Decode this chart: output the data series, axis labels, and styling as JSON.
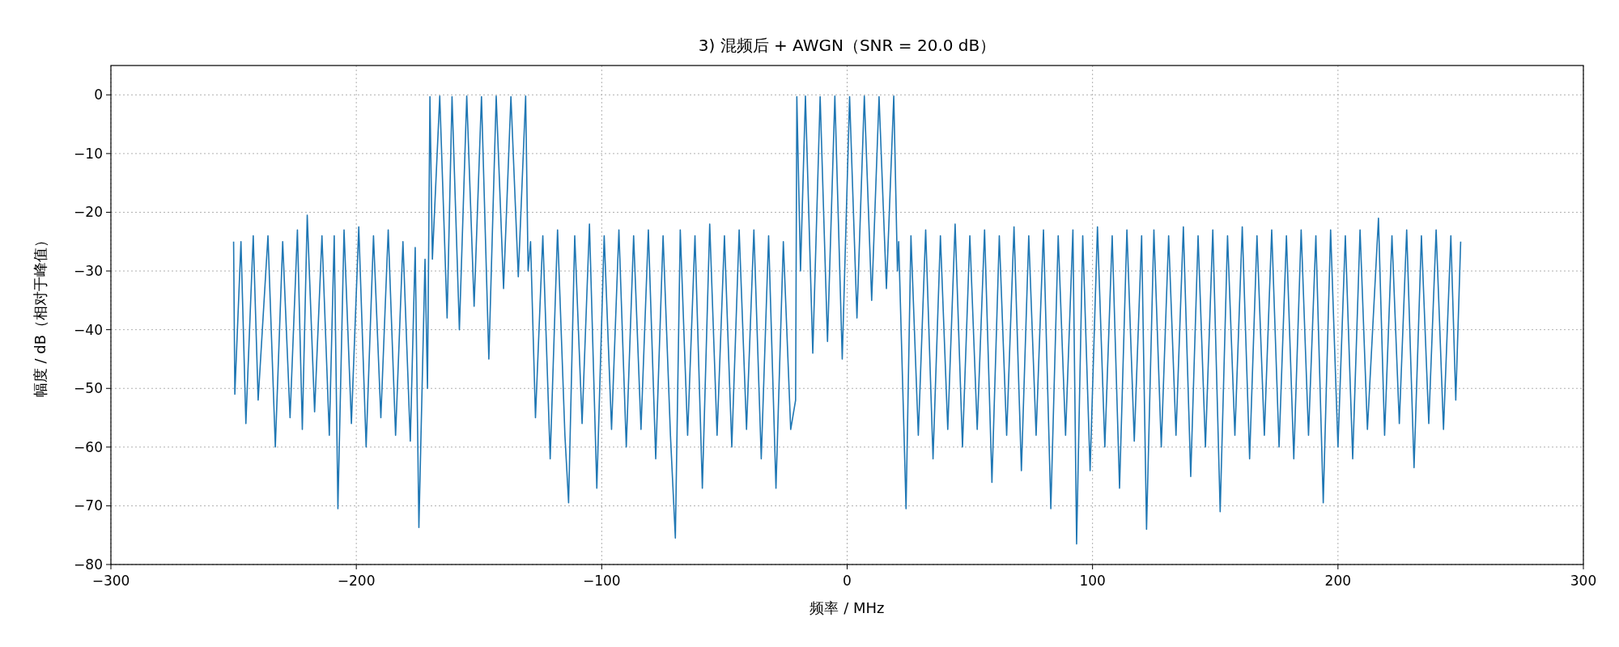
{
  "chart_data": {
    "type": "line",
    "title": "3) 混频后 + AWGN（SNR = 20.0 dB）",
    "xlabel": "频率 / MHz",
    "ylabel": "幅度 / dB（相对于峰值）",
    "xlim": [
      -300,
      300
    ],
    "ylim": [
      -80,
      5
    ],
    "xticks": [
      -300,
      -200,
      -100,
      0,
      100,
      200,
      300
    ],
    "yticks": [
      -80,
      -70,
      -60,
      -50,
      -40,
      -30,
      -20,
      -10,
      0
    ],
    "grid": true,
    "series": [
      {
        "color": "#1f77b4",
        "x": [
          -250,
          -249.5,
          -247,
          -245,
          -242,
          -240,
          -236,
          -233,
          -230,
          -227,
          -224,
          -222,
          -220,
          -217,
          -214,
          -211,
          -209,
          -207.5,
          -205,
          -202,
          -199,
          -196,
          -193,
          -190,
          -187,
          -184,
          -181,
          -178,
          -176,
          -174.5,
          -172,
          -171,
          -170,
          -169,
          -166,
          -163,
          -161,
          -158,
          -155,
          -152,
          -149,
          -146,
          -143,
          -140,
          -137,
          -134,
          -131,
          -130,
          -129,
          -127,
          -124,
          -121,
          -118,
          -115,
          -113.5,
          -111,
          -108,
          -105,
          -102,
          -99,
          -96,
          -93,
          -90,
          -87,
          -84,
          -81,
          -78,
          -75,
          -72,
          -70,
          -68,
          -65,
          -62,
          -59,
          -56,
          -53,
          -50,
          -47,
          -44,
          -41,
          -38,
          -35,
          -32,
          -29,
          -26,
          -23,
          -21,
          -20.5,
          -19,
          -17,
          -14,
          -11,
          -8,
          -5,
          -2,
          1,
          4,
          7,
          10,
          13,
          16,
          19,
          20.5,
          21,
          23,
          24,
          26,
          29,
          32,
          35,
          38,
          41,
          44,
          47,
          50,
          53,
          56,
          59,
          62,
          65,
          68,
          71,
          74,
          77,
          80,
          83,
          86,
          89,
          92,
          93.5,
          96,
          99,
          102,
          105,
          108,
          111,
          114,
          117,
          120,
          122,
          125,
          128,
          131,
          134,
          137,
          140,
          143,
          146,
          149,
          152,
          155,
          158,
          161,
          164,
          167,
          170,
          173,
          176,
          179,
          182,
          185,
          188,
          191,
          194,
          197,
          200,
          203,
          206,
          209,
          212,
          216.5,
          219,
          222,
          225,
          228,
          231,
          234,
          237,
          240,
          243,
          246,
          248,
          250
        ],
        "values": [
          -25,
          -51,
          -25,
          -56,
          -24,
          -52,
          -24,
          -60,
          -25,
          -55,
          -23,
          -57,
          -20.5,
          -54,
          -24,
          -58,
          -24,
          -70.5,
          -23,
          -56,
          -22.5,
          -60,
          -24,
          -55,
          -23,
          -58,
          -25,
          -59,
          -26,
          -73.7,
          -28,
          -50,
          -0.3,
          -28,
          -0.2,
          -38,
          -0.3,
          -40,
          -0.2,
          -36,
          -0.3,
          -45,
          -0.2,
          -33,
          -0.3,
          -31,
          -0.2,
          -30,
          -25,
          -55,
          -24,
          -62,
          -23,
          -58,
          -69.5,
          -24,
          -56,
          -22,
          -67,
          -24,
          -57,
          -23,
          -60,
          -24,
          -57,
          -23,
          -62,
          -24,
          -58,
          -75.5,
          -23,
          -58,
          -24,
          -67,
          -22,
          -58,
          -24,
          -60,
          -23,
          -57,
          -23,
          -62,
          -24,
          -67,
          -25,
          -57,
          -52,
          -0.3,
          -30,
          -0.2,
          -44,
          -0.3,
          -42,
          -0.2,
          -45,
          -0.3,
          -38,
          -0.2,
          -35,
          -0.3,
          -33,
          -0.2,
          -30,
          -25,
          -55,
          -70.5,
          -24,
          -58,
          -23,
          -62,
          -24,
          -57,
          -22,
          -60,
          -24,
          -57,
          -23,
          -66,
          -24,
          -58,
          -22.5,
          -64,
          -24,
          -58,
          -23,
          -70.5,
          -24,
          -58,
          -23,
          -76.5,
          -24,
          -64,
          -22.5,
          -60,
          -24,
          -67,
          -23,
          -59,
          -24,
          -74,
          -23,
          -60,
          -24,
          -58,
          -22.5,
          -65,
          -24,
          -60,
          -23,
          -71,
          -24,
          -58,
          -22.5,
          -62,
          -24,
          -58,
          -23,
          -60,
          -24,
          -62,
          -23,
          -58,
          -24,
          -69.5,
          -23,
          -60,
          -24,
          -62,
          -23,
          -57,
          -21,
          -58,
          -24,
          -56,
          -23,
          -63.5,
          -24,
          -56,
          -23,
          -57,
          -24,
          -52,
          -25
        ]
      }
    ]
  }
}
